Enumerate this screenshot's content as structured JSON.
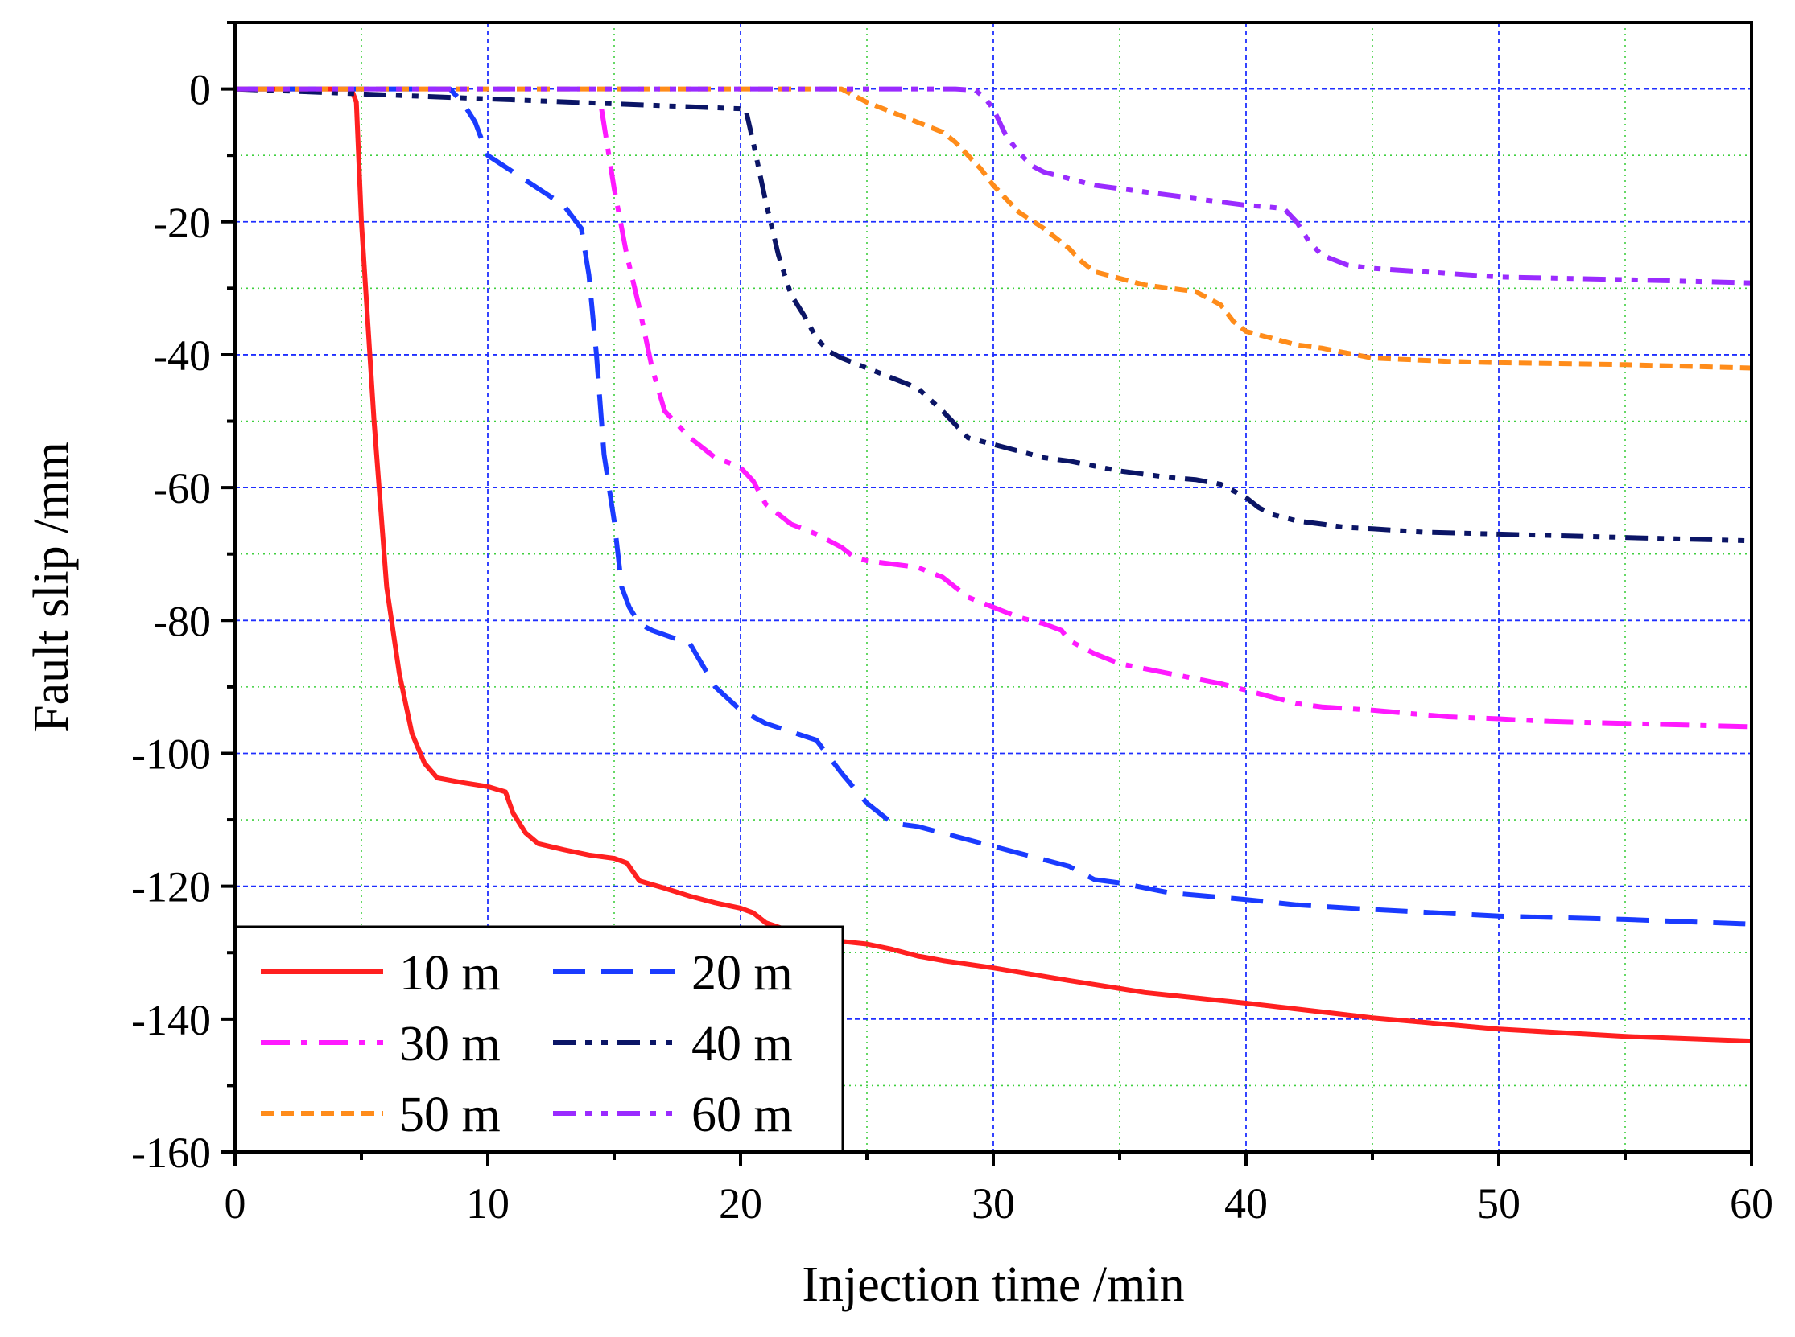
{
  "chart_data": {
    "type": "line",
    "title": "",
    "xlabel": "Injection time /min",
    "ylabel": "Fault slip /mm",
    "xlim": [
      0,
      60
    ],
    "ylim": [
      -160,
      10
    ],
    "xticks": [
      0,
      10,
      20,
      30,
      40,
      50,
      60
    ],
    "yticks": [
      0,
      -20,
      -40,
      -60,
      -80,
      -100,
      -120,
      -140,
      -160
    ],
    "xtick_labels": [
      "0",
      "10",
      "20",
      "30",
      "40",
      "50",
      "60"
    ],
    "ytick_labels": [
      "0",
      "-20",
      "-40",
      "-60",
      "-80",
      "-100",
      "-120",
      "-140",
      "-160"
    ],
    "grid": true,
    "legend_position": "bottom-left",
    "series": [
      {
        "name": "10 m",
        "color": "#ff2020",
        "dash": "solid",
        "x": [
          0,
          4.6,
          4.8,
          5.0,
          5.5,
          6.0,
          6.5,
          7.0,
          7.5,
          8.0,
          9.0,
          10.0,
          10.7,
          11.0,
          11.5,
          12.0,
          13.0,
          14.0,
          15.0,
          15.5,
          16.0,
          17.0,
          18.0,
          19.0,
          20.0,
          20.5,
          21.0,
          22.0,
          23.0,
          24.0,
          25.0,
          26.0,
          27.0,
          28.0,
          30.0,
          33.0,
          36.0,
          40.0,
          45.0,
          50.0,
          55.0,
          60.0
        ],
        "y": [
          0,
          0,
          -2,
          -20,
          -50,
          -75,
          -88,
          -97,
          -101.5,
          -103.7,
          -104.4,
          -105,
          -105.8,
          -109,
          -112,
          -113.6,
          -114.5,
          -115.3,
          -115.8,
          -116.5,
          -119.2,
          -120.3,
          -121.5,
          -122.5,
          -123.3,
          -124,
          -125.5,
          -126.8,
          -127.8,
          -128.3,
          -128.7,
          -129.5,
          -130.5,
          -131.2,
          -132.3,
          -134.2,
          -136,
          -137.6,
          -139.8,
          -141.5,
          -142.6,
          -143.3
        ]
      },
      {
        "name": "20 m",
        "color": "#1a3bff",
        "dash": "long-dash",
        "x": [
          0,
          8.5,
          9.0,
          9.5,
          10.0,
          11.0,
          12.0,
          13.0,
          13.7,
          14.0,
          14.3,
          14.6,
          15.0,
          15.3,
          15.6,
          16.0,
          16.5,
          18.0,
          19.0,
          20.0,
          21.0,
          23.0,
          24.0,
          25.0,
          26.0,
          27.0,
          28.0,
          30.0,
          31.5,
          33.0,
          34.0,
          35.0,
          37.0,
          40.0,
          42.0,
          45.0,
          50.0,
          55.0,
          60.0
        ],
        "y": [
          0,
          0,
          -2,
          -5,
          -10,
          -12.5,
          -15,
          -17.5,
          -21,
          -28,
          -40,
          -55,
          -65,
          -75,
          -78,
          -80.5,
          -81.5,
          -83.5,
          -90,
          -93.5,
          -95.5,
          -98,
          -103,
          -107.5,
          -110.5,
          -111,
          -112,
          -114,
          -115.5,
          -117,
          -119,
          -119.5,
          -121,
          -122,
          -122.8,
          -123.5,
          -124.5,
          -125,
          -125.7
        ]
      },
      {
        "name": "30 m",
        "color": "#ff1aff",
        "dash": "dash-dot",
        "x": [
          14.5,
          15.0,
          15.5,
          16.0,
          16.5,
          17.0,
          18.0,
          19.0,
          19.7,
          20.0,
          20.5,
          21.0,
          22.0,
          23.0,
          24.0,
          24.5,
          25.0,
          26.0,
          27.0,
          28.0,
          29.0,
          30.0,
          31.0,
          32.0,
          32.7,
          33.0,
          34.0,
          35.0,
          37.0,
          39.0,
          40.0,
          41.0,
          42.0,
          43.0,
          45.0,
          48.0,
          50.0,
          52.0,
          55.0,
          58.0,
          60.0
        ],
        "y": [
          -3,
          -15,
          -25,
          -33,
          -42,
          -48.5,
          -52.5,
          -55.5,
          -56.5,
          -57,
          -59,
          -62.5,
          -65.5,
          -67,
          -69,
          -70.5,
          -71,
          -71.5,
          -72,
          -73.5,
          -76.5,
          -78,
          -79.5,
          -80.5,
          -81.5,
          -83,
          -85,
          -86.5,
          -88,
          -89.5,
          -90.5,
          -91.5,
          -92.5,
          -93,
          -93.5,
          -94.5,
          -94.8,
          -95.2,
          -95.5,
          -95.8,
          -96
        ]
      },
      {
        "name": "40 m",
        "color": "#0b1566",
        "dash": "dash-dot-dot",
        "x": [
          0,
          20.2,
          20.5,
          21.0,
          21.5,
          22.0,
          22.5,
          23.0,
          23.5,
          24.0,
          25.0,
          26.0,
          27.0,
          28.0,
          28.5,
          29.0,
          30.0,
          31.0,
          32.0,
          33.0,
          35.0,
          37.0,
          38.0,
          39.0,
          40.0,
          40.5,
          41.0,
          42.0,
          43.0,
          44.0,
          45.0,
          47.0,
          50.0,
          55.0,
          60.0
        ],
        "y": [
          0,
          -3,
          -8,
          -17,
          -25,
          -31,
          -34,
          -37.5,
          -39.5,
          -40.5,
          -42,
          -43.5,
          -45,
          -48.5,
          -50.5,
          -52.5,
          -53.5,
          -54.5,
          -55.5,
          -56,
          -57.5,
          -58.5,
          -58.8,
          -59.5,
          -61.5,
          -63,
          -64,
          -65,
          -65.5,
          -66,
          -66.2,
          -66.7,
          -67,
          -67.5,
          -68
        ]
      },
      {
        "name": "50 m",
        "color": "#ff8c1a",
        "dash": "short-dash",
        "x": [
          0,
          24.0,
          24.5,
          25.0,
          26.0,
          27.0,
          28.0,
          28.5,
          29.0,
          29.5,
          30.0,
          30.5,
          31.0,
          32.0,
          33.0,
          33.5,
          34.0,
          35.0,
          36.0,
          37.0,
          38.0,
          38.5,
          39.0,
          39.5,
          40.0,
          41.0,
          42.0,
          43.0,
          45.0,
          48.0,
          50.0,
          55.0,
          60.0
        ],
        "y": [
          0,
          0,
          -1,
          -2,
          -3.5,
          -5,
          -6.5,
          -8,
          -10,
          -12,
          -14.5,
          -16.5,
          -18.5,
          -21,
          -24,
          -26,
          -27.5,
          -28.5,
          -29.5,
          -30,
          -30.5,
          -31.5,
          -32.5,
          -35,
          -36.5,
          -37.5,
          -38.5,
          -39,
          -40.5,
          -41,
          -41.2,
          -41.5,
          -42
        ]
      },
      {
        "name": "60 m",
        "color": "#9a2bff",
        "dash": "dash-dot-dot",
        "x": [
          0,
          28.5,
          29.3,
          29.7,
          30.0,
          30.5,
          31.0,
          31.5,
          32.0,
          33.0,
          34.0,
          35.0,
          36.0,
          37.0,
          38.0,
          39.0,
          40.0,
          41.0,
          41.5,
          42.0,
          42.5,
          43.0,
          44.0,
          45.0,
          47.0,
          50.0,
          55.0,
          60.0
        ],
        "y": [
          0,
          0,
          -0.2,
          -1.5,
          -3,
          -7,
          -9.5,
          -11.5,
          -12.5,
          -13.5,
          -14.5,
          -15,
          -15.5,
          -16,
          -16.5,
          -17,
          -17.5,
          -17.8,
          -18,
          -20,
          -23,
          -25,
          -26.5,
          -27,
          -27.5,
          -28.3,
          -28.7,
          -29.2
        ]
      }
    ]
  }
}
